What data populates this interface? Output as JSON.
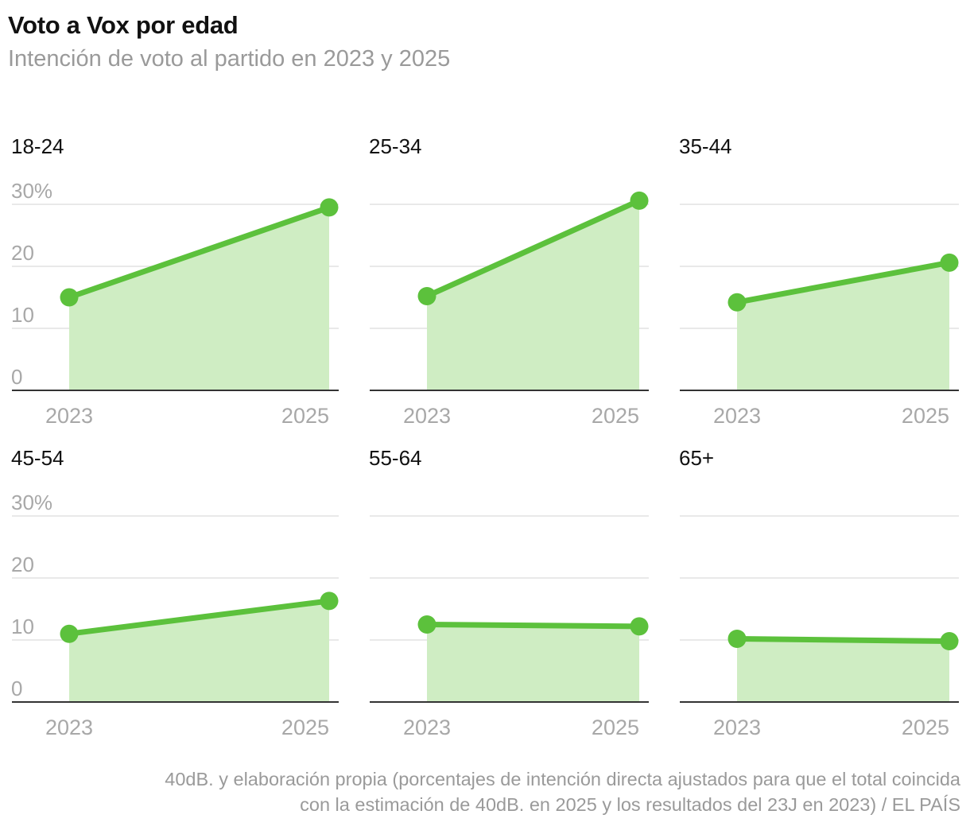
{
  "title": "Voto a Vox por edad",
  "subtitle": "Intención de voto al partido en 2023 y 2025",
  "source_line1": "40dB. y elaboración propia (porcentajes de intención directa ajustados para que el total coincida",
  "source_line2": "con la estimación de 40dB. en 2025 y los resultados del 23J en 2023) / EL PAÍS",
  "colors": {
    "line": "#5cc13c",
    "area": "#cfedc3",
    "grid": "#e2e2e2",
    "axis": "#333333"
  },
  "chart_data": {
    "type": "area",
    "x": [
      "2023",
      "2025"
    ],
    "ylim": [
      0,
      30
    ],
    "y_ticks": [
      {
        "value": 0,
        "label": "0"
      },
      {
        "value": 10,
        "label": "10"
      },
      {
        "value": 20,
        "label": "20"
      },
      {
        "value": 30,
        "label": "30%"
      }
    ],
    "grid": true,
    "panels": [
      {
        "name": "18-24",
        "values": [
          15,
          29.5
        ]
      },
      {
        "name": "25-34",
        "values": [
          15.2,
          30.6
        ]
      },
      {
        "name": "35-44",
        "values": [
          14.2,
          20.6
        ]
      },
      {
        "name": "45-54",
        "values": [
          11,
          16.3
        ]
      },
      {
        "name": "55-64",
        "values": [
          12.5,
          12.2
        ]
      },
      {
        "name": "65+",
        "values": [
          10.2,
          9.8
        ]
      }
    ]
  }
}
